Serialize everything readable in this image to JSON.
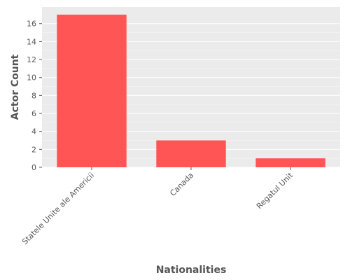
{
  "chart_data": {
    "type": "bar",
    "categories": [
      "Statele Unite ale Americii",
      "Canada",
      "Regatul Unit"
    ],
    "values": [
      17,
      3,
      1
    ],
    "title": "",
    "xlabel": "Nationalities",
    "ylabel": "Actor Count",
    "ylim": [
      0,
      17.85
    ],
    "yticks": [
      0,
      2,
      4,
      6,
      8,
      10,
      12,
      14,
      16
    ],
    "grid": true,
    "bar_color": "#ff5555",
    "background_color": "#ebebeb",
    "grid_color": "#ffffff"
  }
}
